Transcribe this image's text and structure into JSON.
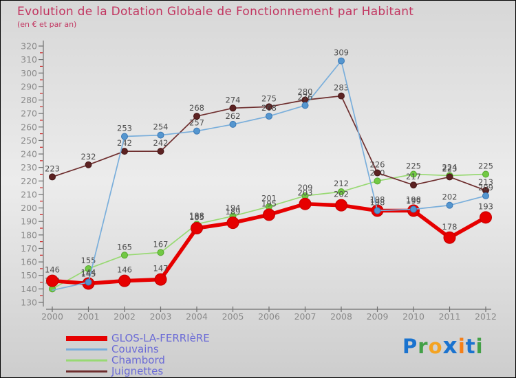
{
  "header": {
    "title": "Evolution de la Dotation Globale de Fonctionnement par Habitant",
    "subtitle": "(en € et par an)",
    "title_color": "#c23560"
  },
  "chart_data": {
    "type": "line",
    "x": [
      2000,
      2001,
      2002,
      2003,
      2004,
      2005,
      2006,
      2007,
      2008,
      2009,
      2010,
      2011,
      2012
    ],
    "ylim": [
      130,
      320
    ],
    "ytick_major": 10,
    "ytick_minor": 5,
    "grid": false,
    "legend_position": "bottom-left",
    "axis_color": "#8a8a8a",
    "tick_color": "#6f6f6f",
    "minor_tick_color": "#cc1111",
    "label_color": "#4d4d4d",
    "series": [
      {
        "name": "GLOS-LA-FERRIèRE",
        "line_color": "#e60000",
        "dot_color": "#e60000",
        "dot_edge": "#c40000",
        "width": 5.5,
        "dot_radius": 8.5,
        "values": [
          146,
          144,
          146,
          147,
          185,
          189,
          195,
          203,
          202,
          198,
          198,
          178,
          193
        ]
      },
      {
        "name": "Couvains",
        "line_color": "#79aedb",
        "dot_color": "#5596cf",
        "dot_edge": "#3a78b5",
        "width": 1.7,
        "dot_radius": 4.5,
        "values": [
          139,
          145,
          253,
          254,
          257,
          262,
          268,
          276,
          309,
          198,
          199,
          202,
          209
        ],
        "skip_points": [
          0
        ]
      },
      {
        "name": "Chambord",
        "line_color": "#98d973",
        "dot_color": "#72c944",
        "dot_edge": "#55a62e",
        "width": 1.7,
        "dot_radius": 4.5,
        "values": [
          140,
          155,
          165,
          167,
          188,
          194,
          201,
          209,
          212,
          220,
          225,
          224,
          225
        ]
      },
      {
        "name": "Juignettes",
        "line_color": "#6e2e2e",
        "dot_color": "#5c2222",
        "dot_edge": "#451717",
        "width": 1.7,
        "dot_radius": 4.5,
        "values": [
          223,
          232,
          242,
          242,
          268,
          274,
          275,
          280,
          283,
          226,
          217,
          223,
          213
        ]
      }
    ]
  },
  "legend": {
    "text_color": "#6b6bd6",
    "items": [
      {
        "label": "GLOS-LA-FERRIèRE",
        "color": "#e60000",
        "thick": true
      },
      {
        "label": "Couvains",
        "color": "#79aedb",
        "thick": false
      },
      {
        "label": "Chambord",
        "color": "#98d973",
        "thick": false
      },
      {
        "label": "Juignettes",
        "color": "#6e2e2e",
        "thick": false
      }
    ]
  },
  "logo": {
    "text": "Proxiti",
    "letters": [
      {
        "ch": "P",
        "color": "#1a73cf"
      },
      {
        "ch": "r",
        "color": "#43a047"
      },
      {
        "ch": "o",
        "color": "#f4a321"
      },
      {
        "ch": "x",
        "color": "#1a73cf"
      },
      {
        "ch": "i",
        "color": "#f57f17"
      },
      {
        "ch": "t",
        "color": "#1a73cf"
      },
      {
        "ch": "i",
        "color": "#43a047"
      }
    ]
  }
}
